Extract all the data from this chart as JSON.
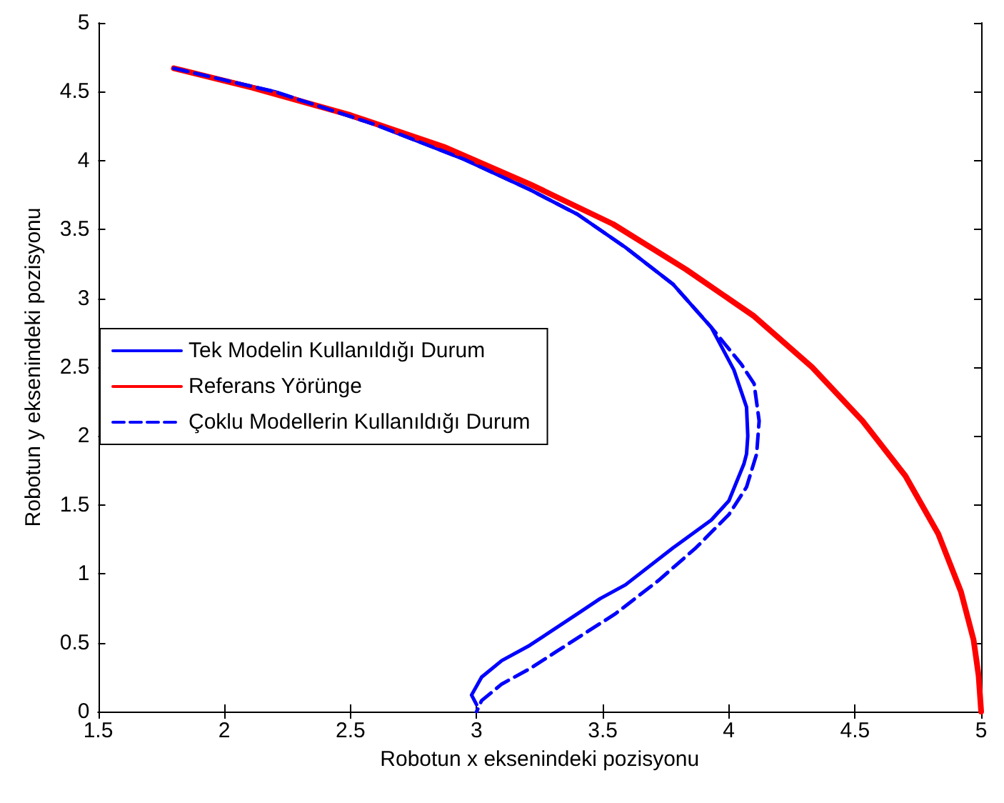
{
  "chart_data": {
    "type": "line",
    "xlabel": "Robotun x eksenindeki pozisyonu",
    "ylabel": "Robotun y eksenindeki pozisyonu",
    "xlim": [
      1.5,
      5
    ],
    "ylim": [
      0,
      5
    ],
    "xticks": [
      1.5,
      2,
      2.5,
      3,
      3.5,
      4,
      4.5,
      5
    ],
    "yticks": [
      0,
      0.5,
      1,
      1.5,
      2,
      2.5,
      3,
      3.5,
      4,
      4.5,
      5
    ],
    "legend": "left",
    "grid": false,
    "series": [
      {
        "name": "Tek Modelin Kullanıldığı Durum",
        "color": "#0000ff",
        "line_style": "solid",
        "x": [
          1.8,
          2.2,
          2.6,
          2.95,
          3.21,
          3.4,
          3.59,
          3.78,
          3.93,
          4.02,
          4.07,
          4.075,
          4.07,
          4.06,
          4.0,
          3.93,
          3.78,
          3.59,
          3.49,
          3.4,
          3.21,
          3.1,
          3.02,
          2.98,
          3.0
        ],
        "values": [
          4.67,
          4.5,
          4.26,
          4.01,
          3.79,
          3.61,
          3.37,
          3.1,
          2.79,
          2.48,
          2.21,
          2.0,
          1.87,
          1.8,
          1.53,
          1.39,
          1.19,
          0.92,
          0.82,
          0.71,
          0.48,
          0.37,
          0.25,
          0.12,
          0.05
        ]
      },
      {
        "name": "Referans Yörünge",
        "color": "#ff0000",
        "line_style": "solid",
        "x": [
          1.8,
          2.11,
          2.5,
          2.87,
          3.21,
          3.54,
          3.83,
          4.1,
          4.33,
          4.53,
          4.7,
          4.83,
          4.92,
          4.97,
          4.99,
          5
        ],
        "values": [
          4.67,
          4.53,
          4.33,
          4.1,
          3.83,
          3.54,
          3.21,
          2.87,
          2.5,
          2.11,
          1.71,
          1.29,
          0.87,
          0.52,
          0.26,
          0
        ]
      },
      {
        "name": "Çoklu Modellerin Kullanıldığı Durum",
        "color": "#0000ff",
        "line_style": "dashed",
        "x": [
          1.8,
          2.2,
          2.6,
          2.95,
          3.21,
          3.4,
          3.59,
          3.78,
          3.93,
          4.05,
          4.1,
          4.12,
          4.11,
          4.07,
          4.0,
          3.87,
          3.72,
          3.55,
          3.32,
          3.21,
          3.1,
          3.02,
          3.0
        ],
        "values": [
          4.67,
          4.5,
          4.26,
          4.01,
          3.79,
          3.61,
          3.37,
          3.1,
          2.79,
          2.52,
          2.38,
          2.11,
          1.87,
          1.63,
          1.43,
          1.19,
          0.95,
          0.71,
          0.44,
          0.31,
          0.2,
          0.08,
          0
        ]
      }
    ]
  }
}
